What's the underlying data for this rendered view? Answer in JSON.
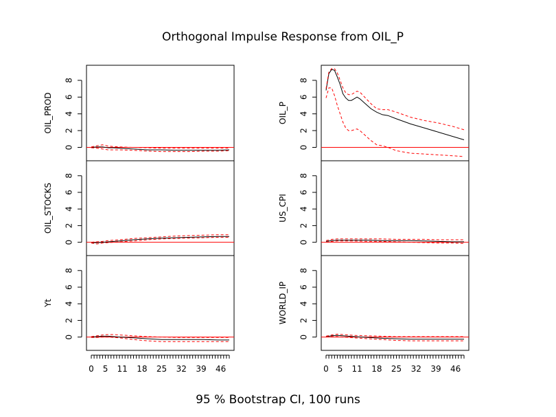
{
  "figure": {
    "title": "Orthogonal Impulse Response from OIL_P",
    "footer": "95 % Bootstrap CI,  100 runs"
  },
  "style": {
    "response_color": "#000000",
    "ci_color": "#ff0000",
    "zero_line_color": "#ff0000"
  },
  "chart_data": [
    {
      "type": "line",
      "ylabel": "OIL_PROD",
      "ylim": [
        -1.6,
        9.8
      ],
      "yticks": [
        0,
        2,
        4,
        6,
        8
      ],
      "xticks": [
        0,
        5,
        11,
        18,
        25,
        32,
        39,
        46
      ],
      "xlim": [
        0,
        49
      ],
      "show_xaxis": false,
      "series": [
        {
          "role": "response",
          "x": [
            0,
            2,
            4,
            6,
            8,
            10,
            15,
            20,
            25,
            30,
            35,
            40,
            45,
            49
          ],
          "values": [
            0.0,
            0.05,
            0.05,
            -0.05,
            -0.05,
            -0.1,
            -0.2,
            -0.3,
            -0.3,
            -0.35,
            -0.35,
            -0.35,
            -0.35,
            -0.3
          ]
        },
        {
          "role": "ci_upper",
          "x": [
            0,
            2,
            4,
            6,
            8,
            10,
            15,
            20,
            25,
            30,
            35,
            40,
            45,
            49
          ],
          "values": [
            0.05,
            0.2,
            0.3,
            0.15,
            0.1,
            0.05,
            0.0,
            -0.05,
            -0.1,
            -0.1,
            -0.1,
            -0.1,
            -0.1,
            -0.1
          ]
        },
        {
          "role": "ci_lower",
          "x": [
            0,
            2,
            4,
            6,
            8,
            10,
            15,
            20,
            25,
            30,
            35,
            40,
            45,
            49
          ],
          "values": [
            -0.05,
            -0.1,
            -0.2,
            -0.3,
            -0.3,
            -0.3,
            -0.35,
            -0.45,
            -0.5,
            -0.5,
            -0.5,
            -0.45,
            -0.45,
            -0.4
          ]
        }
      ]
    },
    {
      "type": "line",
      "ylabel": "OIL_STOCKS",
      "ylim": [
        -1.6,
        9.8
      ],
      "yticks": [
        0,
        2,
        4,
        6,
        8
      ],
      "xticks": [
        0,
        5,
        11,
        18,
        25,
        32,
        39,
        46
      ],
      "xlim": [
        0,
        49
      ],
      "show_xaxis": false,
      "series": [
        {
          "role": "response",
          "x": [
            0,
            2,
            4,
            6,
            8,
            10,
            15,
            20,
            25,
            30,
            35,
            40,
            45,
            49
          ],
          "values": [
            -0.05,
            -0.05,
            0.0,
            0.05,
            0.1,
            0.15,
            0.3,
            0.4,
            0.5,
            0.55,
            0.6,
            0.65,
            0.7,
            0.7
          ]
        },
        {
          "role": "ci_upper",
          "x": [
            0,
            2,
            4,
            6,
            8,
            10,
            15,
            20,
            25,
            30,
            35,
            40,
            45,
            49
          ],
          "values": [
            0.0,
            0.05,
            0.1,
            0.2,
            0.25,
            0.3,
            0.45,
            0.55,
            0.65,
            0.75,
            0.8,
            0.85,
            0.9,
            0.9
          ]
        },
        {
          "role": "ci_lower",
          "x": [
            0,
            2,
            4,
            6,
            8,
            10,
            15,
            20,
            25,
            30,
            35,
            40,
            45,
            49
          ],
          "values": [
            -0.1,
            -0.2,
            -0.1,
            -0.05,
            0.0,
            0.05,
            0.15,
            0.3,
            0.4,
            0.45,
            0.5,
            0.55,
            0.6,
            0.6
          ]
        }
      ]
    },
    {
      "type": "line",
      "ylabel": "Yt",
      "ylim": [
        -1.6,
        9.8
      ],
      "yticks": [
        0,
        2,
        4,
        6,
        8
      ],
      "xticks": [
        0,
        5,
        11,
        18,
        25,
        32,
        39,
        46
      ],
      "xlim": [
        0,
        49
      ],
      "show_xaxis": true,
      "series": [
        {
          "role": "response",
          "x": [
            0,
            2,
            4,
            6,
            8,
            10,
            15,
            20,
            25,
            30,
            35,
            40,
            45,
            49
          ],
          "values": [
            0.0,
            0.05,
            0.1,
            0.1,
            0.05,
            0.0,
            -0.1,
            -0.2,
            -0.3,
            -0.3,
            -0.3,
            -0.3,
            -0.35,
            -0.35
          ]
        },
        {
          "role": "ci_upper",
          "x": [
            0,
            2,
            4,
            6,
            8,
            10,
            15,
            20,
            25,
            30,
            35,
            40,
            45,
            49
          ],
          "values": [
            0.05,
            0.15,
            0.25,
            0.3,
            0.3,
            0.25,
            0.15,
            0.05,
            0.0,
            -0.05,
            -0.05,
            -0.05,
            -0.05,
            -0.05
          ]
        },
        {
          "role": "ci_lower",
          "x": [
            0,
            2,
            4,
            6,
            8,
            10,
            15,
            20,
            25,
            30,
            35,
            40,
            45,
            49
          ],
          "values": [
            -0.05,
            -0.05,
            0.0,
            0.0,
            -0.05,
            -0.1,
            -0.3,
            -0.45,
            -0.55,
            -0.55,
            -0.55,
            -0.55,
            -0.55,
            -0.55
          ]
        }
      ]
    },
    {
      "type": "line",
      "ylabel": "OIL_P",
      "ylim": [
        -1.6,
        9.8
      ],
      "yticks": [
        0,
        2,
        4,
        6,
        8
      ],
      "xticks": [
        0,
        5,
        11,
        18,
        25,
        32,
        39,
        46
      ],
      "xlim": [
        0,
        49
      ],
      "show_xaxis": false,
      "series": [
        {
          "role": "response",
          "x": [
            0,
            1,
            2,
            3,
            4,
            5,
            6,
            7,
            8,
            9,
            10,
            11,
            12,
            14,
            16,
            18,
            20,
            22,
            25,
            30,
            35,
            40,
            45,
            49
          ],
          "values": [
            6.8,
            8.8,
            9.3,
            9.2,
            8.4,
            7.5,
            6.4,
            5.9,
            5.6,
            5.6,
            5.8,
            6.0,
            5.8,
            5.2,
            4.6,
            4.2,
            3.9,
            3.8,
            3.4,
            2.8,
            2.3,
            1.8,
            1.3,
            0.9
          ]
        },
        {
          "role": "ci_upper",
          "x": [
            0,
            1,
            2,
            3,
            4,
            5,
            6,
            7,
            8,
            9,
            10,
            11,
            12,
            14,
            16,
            18,
            20,
            22,
            25,
            30,
            35,
            40,
            45,
            49
          ],
          "values": [
            7.0,
            9.0,
            9.4,
            9.4,
            8.9,
            8.0,
            7.1,
            6.5,
            6.3,
            6.3,
            6.5,
            6.7,
            6.6,
            5.9,
            5.2,
            4.6,
            4.5,
            4.5,
            4.2,
            3.6,
            3.2,
            2.9,
            2.5,
            2.1
          ]
        },
        {
          "role": "ci_lower",
          "x": [
            0,
            1,
            2,
            3,
            4,
            5,
            6,
            7,
            8,
            9,
            10,
            11,
            12,
            14,
            16,
            18,
            20,
            22,
            25,
            30,
            35,
            40,
            45,
            49
          ],
          "values": [
            5.9,
            7.1,
            7.1,
            6.2,
            5.0,
            4.0,
            3.0,
            2.3,
            2.0,
            2.0,
            2.1,
            2.2,
            2.0,
            1.4,
            0.8,
            0.3,
            0.2,
            0.0,
            -0.4,
            -0.7,
            -0.8,
            -0.9,
            -1.0,
            -1.1
          ]
        }
      ]
    },
    {
      "type": "line",
      "ylabel": "US_CPI",
      "ylim": [
        -1.6,
        9.8
      ],
      "yticks": [
        0,
        2,
        4,
        6,
        8
      ],
      "xticks": [
        0,
        5,
        11,
        18,
        25,
        32,
        39,
        46
      ],
      "xlim": [
        0,
        49
      ],
      "show_xaxis": false,
      "series": [
        {
          "role": "response",
          "x": [
            0,
            2,
            4,
            6,
            8,
            10,
            15,
            20,
            25,
            30,
            35,
            40,
            45,
            49
          ],
          "values": [
            0.1,
            0.2,
            0.25,
            0.25,
            0.25,
            0.25,
            0.25,
            0.2,
            0.2,
            0.2,
            0.15,
            0.1,
            0.05,
            0.05
          ]
        },
        {
          "role": "ci_upper",
          "x": [
            0,
            2,
            4,
            6,
            8,
            10,
            15,
            20,
            25,
            30,
            35,
            40,
            45,
            49
          ],
          "values": [
            0.2,
            0.35,
            0.4,
            0.4,
            0.4,
            0.4,
            0.4,
            0.4,
            0.35,
            0.35,
            0.35,
            0.3,
            0.3,
            0.3
          ]
        },
        {
          "role": "ci_lower",
          "x": [
            0,
            2,
            4,
            6,
            8,
            10,
            15,
            20,
            25,
            30,
            35,
            40,
            45,
            49
          ],
          "values": [
            0.0,
            0.1,
            0.15,
            0.15,
            0.15,
            0.15,
            0.1,
            0.1,
            0.05,
            0.0,
            -0.05,
            -0.1,
            -0.1,
            -0.15
          ]
        }
      ]
    },
    {
      "type": "line",
      "ylabel": "WORLD_IP",
      "ylim": [
        -1.6,
        9.8
      ],
      "yticks": [
        0,
        2,
        4,
        6,
        8
      ],
      "xticks": [
        0,
        5,
        11,
        18,
        25,
        32,
        39,
        46
      ],
      "xlim": [
        0,
        49
      ],
      "show_xaxis": true,
      "series": [
        {
          "role": "response",
          "x": [
            0,
            2,
            4,
            6,
            8,
            10,
            15,
            20,
            25,
            30,
            35,
            40,
            45,
            49
          ],
          "values": [
            0.05,
            0.15,
            0.2,
            0.15,
            0.1,
            0.05,
            -0.05,
            -0.15,
            -0.2,
            -0.25,
            -0.25,
            -0.25,
            -0.25,
            -0.25
          ]
        },
        {
          "role": "ci_upper",
          "x": [
            0,
            2,
            4,
            6,
            8,
            10,
            15,
            20,
            25,
            30,
            35,
            40,
            45,
            49
          ],
          "values": [
            0.1,
            0.25,
            0.35,
            0.3,
            0.25,
            0.2,
            0.15,
            0.1,
            0.05,
            0.05,
            0.05,
            0.05,
            0.05,
            0.05
          ]
        },
        {
          "role": "ci_lower",
          "x": [
            0,
            2,
            4,
            6,
            8,
            10,
            15,
            20,
            25,
            30,
            35,
            40,
            45,
            49
          ],
          "values": [
            0.0,
            0.05,
            0.05,
            0.0,
            -0.05,
            -0.1,
            -0.2,
            -0.3,
            -0.4,
            -0.45,
            -0.45,
            -0.45,
            -0.45,
            -0.45
          ]
        }
      ]
    }
  ]
}
